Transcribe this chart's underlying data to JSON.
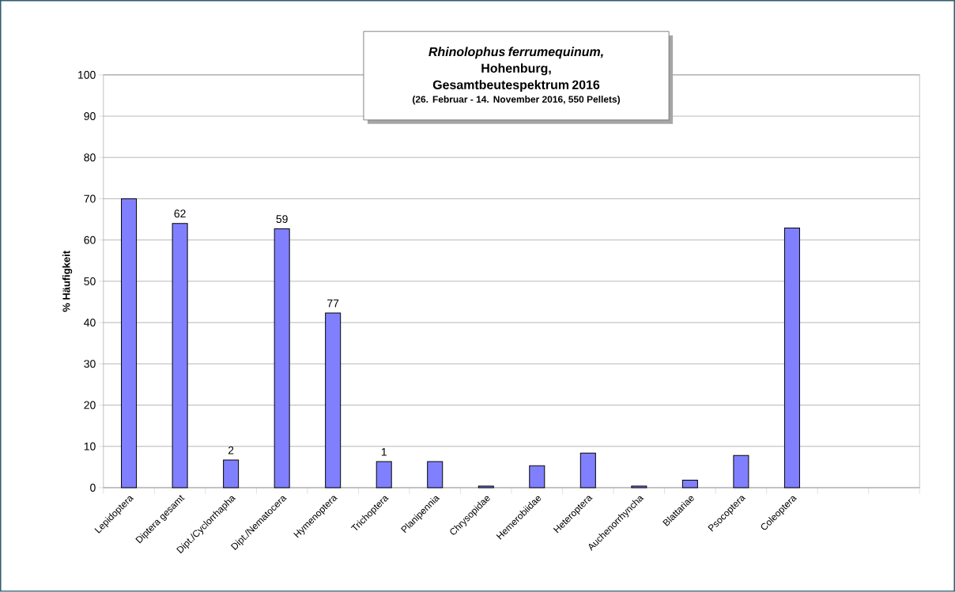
{
  "chart_data": {
    "type": "bar",
    "title": "*Rhinolophus ferrumequinum,* Hohenburg, Gesamtbeutespektrum 2016",
    "subtitle": "(26. Februar - 14. November 2016, 550 Pellets)",
    "ylabel": "% Häufigkeit",
    "categories": [
      "Lepidoptera",
      "Diptera gesamt",
      "Dipt./Cyclorrhapha",
      "Dipt./Nematocera",
      "Hymenoptera",
      "Trichoptera",
      "Planipennia",
      "Chrysopidae",
      "Hemerobiidae",
      "Heteroptera",
      "Auchenorrhyncha",
      "Blattariae",
      "Psocoptera",
      "Coleoptera",
      null,
      null
    ],
    "values": [
      70,
      64,
      6.7,
      62.7,
      42.3,
      6.3,
      6.3,
      0.4,
      5.3,
      8.4,
      0.4,
      1.8,
      7.8,
      62.9,
      null,
      null
    ],
    "color": "#8080ff",
    "ylim": [
      0,
      100
    ],
    "yticks": [
      0,
      10,
      20,
      30,
      40,
      50,
      60,
      70,
      80,
      90,
      100
    ],
    "grid": "y",
    "annotations": [
      {
        "text": "62",
        "x": "Diptera gesamt",
        "y": 64
      },
      {
        "text": "59",
        "x": "Dipt./Nematocera",
        "y": 62.7
      },
      {
        "text": "2",
        "x": "Dipt./Cyclorrhapha",
        "y": 6.7
      },
      {
        "text": "77",
        "x": "Hymenoptera",
        "y": 42.3
      },
      {
        "text": "1",
        "x": "Trichoptera",
        "y": 6.3
      }
    ]
  }
}
